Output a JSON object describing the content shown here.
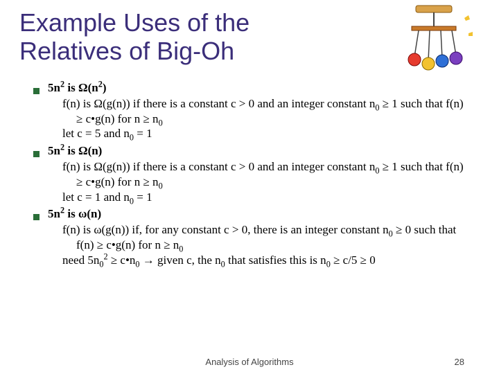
{
  "title": "Example Uses of the Relatives of Big-Oh",
  "title_fontsize": 36,
  "title_color": "#3b2e7a",
  "bullet_color": "#2a6e38",
  "body_fontsize": 17,
  "footer_fontsize": 13,
  "footer": "Analysis of Algorithms",
  "page_number": "28",
  "symbols": {
    "big_omega": "Ω",
    "small_omega": "ω",
    "ge": "≥",
    "dot": "•",
    "arrow": "→"
  },
  "items": [
    {
      "head_parts": [
        "5n",
        "2",
        " is ",
        "Ω",
        "(n",
        "2",
        ")"
      ],
      "def_html": "f(n) is Ω(g(n)) if there is a constant c > 0 and an integer constant n<sub>0</sub> ≥ 1 such that f(n) ≥ c•g(n) for n ≥ n<sub>0</sub>",
      "let_html": "let c = 5 and n<sub>0</sub> = 1"
    },
    {
      "head_parts": [
        "5n",
        "2",
        " is ",
        "Ω",
        "(n)"
      ],
      "def_html": "f(n) is Ω(g(n)) if there is a constant c > 0 and an integer constant n<sub>0</sub> ≥ 1 such that f(n) ≥ c•g(n) for n ≥ n<sub>0</sub>",
      "let_html": "let c = 1 and n<sub>0</sub> = 1"
    },
    {
      "head_parts": [
        "5n",
        "2",
        " is ",
        "ω",
        "(n)"
      ],
      "def_html": "f(n) is ω(g(n)) if, for any constant c > 0, there is an integer constant n<sub>0</sub> ≥ 0 such that f(n) ≥ c•g(n) for n ≥ n<sub>0</sub>",
      "let_html": "need 5n<sub>0</sub><sup>2</sup> ≥ c•n<sub>0</sub> → given c, the n<sub>0</sub> that satisfies this is n<sub>0</sub> ≥ c/5 ≥ 0"
    }
  ]
}
